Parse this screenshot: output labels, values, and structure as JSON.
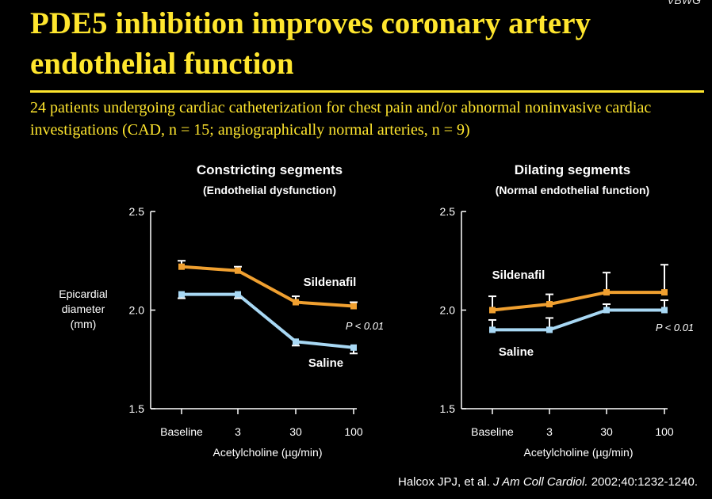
{
  "slide": {
    "title": "PDE5 inhibition improves coronary artery endothelial function",
    "corner_text": "VBWG",
    "subtitle": "24 patients undergoing cardiac catheterization for chest pain and/or abnormal noninvasive cardiac investigations (CAD, n = 15; angiographically normal arteries, n = 9)",
    "citation": {
      "authors": "Halcox JPJ, et al. ",
      "journal": "J Am Coll Cardiol.",
      "details": " 2002;40:1232-1240."
    },
    "colors": {
      "title": "#ffe62e",
      "sildenafil": "#f0a030",
      "saline": "#a8d8f4",
      "background": "#000000"
    }
  },
  "chart_data": [
    {
      "type": "line",
      "title": "Constricting segments",
      "subtitle": "(Endothelial dysfunction)",
      "ylabel": "Epicardial diameter (mm)",
      "xlabel": "Acetylcholine (µg/min)",
      "categories": [
        "Baseline",
        "3",
        "30",
        "100"
      ],
      "ylim": [
        1.5,
        2.5
      ],
      "yticks": [
        "2.5",
        "2.0",
        "1.5"
      ],
      "pvalue": "P < 0.01",
      "series": [
        {
          "name": "Sildenafil",
          "values": [
            2.22,
            2.2,
            2.04,
            2.02
          ],
          "errors": [
            0.03,
            0.02,
            0.03,
            0.02
          ],
          "color": "#f0a030"
        },
        {
          "name": "Saline",
          "values": [
            2.08,
            2.08,
            1.84,
            1.81
          ],
          "errors": [
            0.02,
            0.02,
            0.02,
            0.03
          ],
          "color": "#a8d8f4"
        }
      ],
      "grid": false
    },
    {
      "type": "line",
      "title": "Dilating segments",
      "subtitle": "(Normal endothelial function)",
      "xlabel": "Acetylcholine (µg/min)",
      "categories": [
        "Baseline",
        "3",
        "30",
        "100"
      ],
      "ylim": [
        1.5,
        2.5
      ],
      "yticks": [
        "2.5",
        "2.0",
        "1.5"
      ],
      "pvalue": "P < 0.01",
      "series": [
        {
          "name": "Sildenafil",
          "values": [
            2.0,
            2.03,
            2.09,
            2.09
          ],
          "errors": [
            0.07,
            0.05,
            0.1,
            0.14
          ],
          "color": "#f0a030"
        },
        {
          "name": "Saline",
          "values": [
            1.9,
            1.9,
            2.0,
            2.0
          ],
          "errors": [
            0.05,
            0.06,
            0.03,
            0.05
          ],
          "color": "#a8d8f4"
        }
      ],
      "grid": false
    }
  ]
}
